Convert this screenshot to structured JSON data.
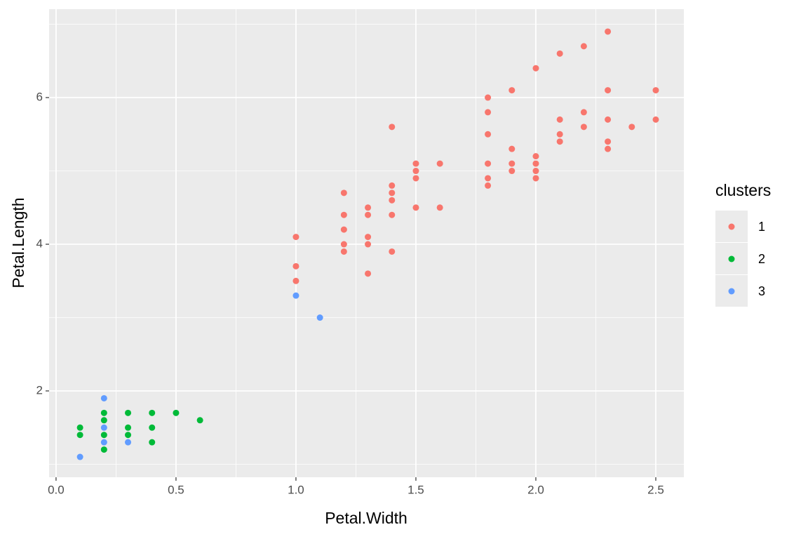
{
  "chart_data": {
    "type": "scatter",
    "x_label": "Petal.Width",
    "y_label": "Petal.Length",
    "legend_title": "clusters",
    "legend": "right",
    "grid": true,
    "xlim": [
      -0.029,
      2.617
    ],
    "ylim": [
      0.823,
      7.206
    ],
    "xticks": [
      {
        "value": 0,
        "label": "0.0"
      },
      0.5,
      {
        "value": 1,
        "label": "1.0"
      },
      1.5,
      {
        "value": 2,
        "label": "2.0"
      },
      2.5
    ],
    "yticks": [
      2,
      4,
      6
    ],
    "xminor": [
      0.25,
      0.75,
      1.25,
      1.75,
      2.25
    ],
    "yminor": [
      1,
      3,
      5,
      7
    ],
    "series": [
      {
        "name": "1",
        "color": "#F8766D",
        "x": [
          1.0,
          1.0,
          1.0,
          1.2,
          1.2,
          1.2,
          1.2,
          1.2,
          1.3,
          1.3,
          1.3,
          1.3,
          1.3,
          1.4,
          1.4,
          1.4,
          1.4,
          1.4,
          1.4,
          1.5,
          1.5,
          1.5,
          1.5,
          1.6,
          1.6,
          1.8,
          1.8,
          1.8,
          1.8,
          1.8,
          1.8,
          1.9,
          1.9,
          1.9,
          1.9,
          2.0,
          2.0,
          2.0,
          2.0,
          2.0,
          2.1,
          2.1,
          2.1,
          2.1,
          2.2,
          2.2,
          2.2,
          2.3,
          2.3,
          2.3,
          2.3,
          2.3,
          2.4,
          2.5,
          2.5
        ],
        "values": [
          4.1,
          3.7,
          3.5,
          4.7,
          4.4,
          4.2,
          4.0,
          3.9,
          4.5,
          4.4,
          4.1,
          4.0,
          3.6,
          5.6,
          4.8,
          4.7,
          4.6,
          4.4,
          3.9,
          5.1,
          5.0,
          4.9,
          4.5,
          5.1,
          4.5,
          6.0,
          5.8,
          5.5,
          5.1,
          4.9,
          4.8,
          6.1,
          5.3,
          5.1,
          5.0,
          6.4,
          5.2,
          5.1,
          5.0,
          4.9,
          6.6,
          5.7,
          5.5,
          5.4,
          6.7,
          5.8,
          5.6,
          6.9,
          6.1,
          5.7,
          5.4,
          5.3,
          5.6,
          6.1,
          5.7
        ]
      },
      {
        "name": "2",
        "color": "#00BA38",
        "x": [
          0.1,
          0.1,
          0.2,
          0.2,
          0.2,
          0.2,
          0.3,
          0.3,
          0.3,
          0.4,
          0.4,
          0.4,
          0.5,
          0.6
        ],
        "values": [
          1.5,
          1.4,
          1.7,
          1.6,
          1.4,
          1.2,
          1.7,
          1.5,
          1.4,
          1.7,
          1.5,
          1.3,
          1.7,
          1.6
        ]
      },
      {
        "name": "3",
        "color": "#619CFF",
        "x": [
          0.1,
          0.2,
          0.2,
          0.2,
          0.3,
          1.0,
          1.1
        ],
        "values": [
          1.1,
          1.9,
          1.5,
          1.3,
          1.3,
          3.3,
          3.0
        ]
      }
    ]
  }
}
